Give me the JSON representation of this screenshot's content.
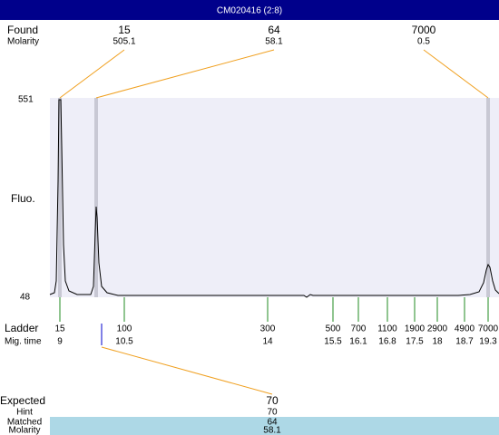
{
  "title": "CM020416 (2:8)",
  "found": {
    "label": "Found",
    "molarity_label": "Molarity",
    "peaks": [
      {
        "size": 15,
        "molarity": 505.1
      },
      {
        "size": 64,
        "molarity": 58.1
      },
      {
        "size": 7000,
        "molarity": 0.5
      }
    ]
  },
  "y_axis": {
    "label": "Fluo.",
    "max": 551,
    "min": 48
  },
  "ladder": {
    "label": "Ladder",
    "time_label": "Mig. time",
    "sizes": [
      15,
      100,
      300,
      500,
      700,
      1100,
      1900,
      2900,
      4900,
      7000
    ],
    "times": [
      9,
      10.5,
      14,
      15.5,
      16.1,
      16.8,
      17.5,
      18,
      18.7,
      19.3
    ]
  },
  "expected": {
    "label": "Expected",
    "value": 70,
    "rows": [
      {
        "label": "Hint",
        "value": 70
      },
      {
        "label": "Matched",
        "value": 64
      },
      {
        "label": "Molarity",
        "value": 58.1
      }
    ]
  }
}
